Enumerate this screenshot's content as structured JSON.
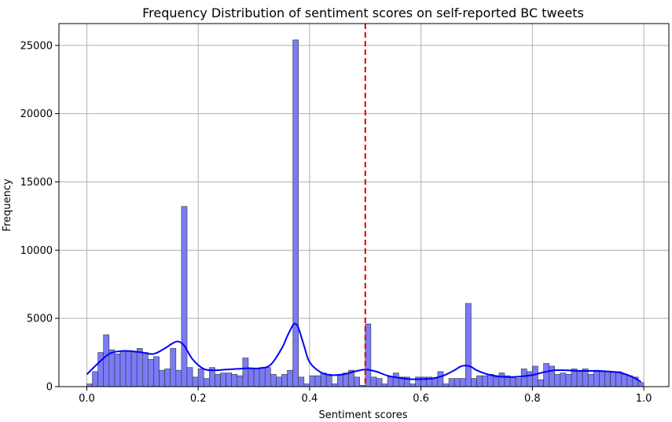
{
  "chart_data": {
    "type": "bar",
    "title": "Frequency Distribution of sentiment scores on self-reported BC tweets",
    "xlabel": "Sentiment scores",
    "ylabel": "Frequency",
    "xlim": [
      -0.05,
      1.045
    ],
    "ylim": [
      0,
      26600
    ],
    "grid": true,
    "bar_color": "#7b7bf7",
    "bar_edge_color": "#333333",
    "kde_color": "#0000ff",
    "threshold_line": {
      "x": 0.5,
      "color": "#e00000",
      "style": "dashed"
    },
    "xticks": [
      {
        "value": 0.0,
        "label": "0.0"
      },
      {
        "value": 0.2,
        "label": "0.2"
      },
      {
        "value": 0.4,
        "label": "0.4"
      },
      {
        "value": 0.6,
        "label": "0.6"
      },
      {
        "value": 0.8,
        "label": "0.8"
      },
      {
        "value": 1.0,
        "label": "1.0"
      }
    ],
    "yticks": [
      {
        "value": 0,
        "label": "0"
      },
      {
        "value": 5000,
        "label": "5000"
      },
      {
        "value": 10000,
        "label": "10000"
      },
      {
        "value": 15000,
        "label": "15000"
      },
      {
        "value": 20000,
        "label": "20000"
      },
      {
        "value": 25000,
        "label": "25000"
      }
    ],
    "bin_width": 0.01,
    "bins_start": [
      0.0,
      0.01,
      0.02,
      0.03,
      0.04,
      0.05,
      0.06,
      0.07,
      0.08,
      0.09,
      0.1,
      0.11,
      0.12,
      0.13,
      0.14,
      0.15,
      0.16,
      0.17,
      0.18,
      0.19,
      0.2,
      0.21,
      0.22,
      0.23,
      0.24,
      0.25,
      0.26,
      0.27,
      0.28,
      0.29,
      0.3,
      0.31,
      0.32,
      0.33,
      0.34,
      0.35,
      0.36,
      0.37,
      0.38,
      0.39,
      0.4,
      0.41,
      0.42,
      0.43,
      0.44,
      0.45,
      0.46,
      0.47,
      0.48,
      0.49,
      0.5,
      0.51,
      0.52,
      0.53,
      0.54,
      0.55,
      0.56,
      0.57,
      0.58,
      0.59,
      0.6,
      0.61,
      0.62,
      0.63,
      0.64,
      0.65,
      0.66,
      0.67,
      0.68,
      0.69,
      0.7,
      0.71,
      0.72,
      0.73,
      0.74,
      0.75,
      0.76,
      0.77,
      0.78,
      0.79,
      0.8,
      0.81,
      0.82,
      0.83,
      0.84,
      0.85,
      0.86,
      0.87,
      0.88,
      0.89,
      0.9,
      0.91,
      0.92,
      0.93,
      0.94,
      0.95,
      0.96,
      0.97,
      0.98,
      0.99
    ],
    "counts": [
      200,
      1100,
      2500,
      3800,
      2700,
      2400,
      2600,
      2600,
      2500,
      2800,
      2500,
      2000,
      2200,
      1200,
      1300,
      2800,
      1200,
      13200,
      1400,
      700,
      1300,
      600,
      1400,
      900,
      1000,
      1000,
      900,
      800,
      2100,
      1300,
      1300,
      1400,
      1400,
      900,
      700,
      900,
      1200,
      25400,
      700,
      200,
      800,
      800,
      1000,
      800,
      200,
      900,
      1000,
      1200,
      700,
      100,
      4600,
      700,
      600,
      200,
      700,
      1000,
      700,
      700,
      200,
      700,
      700,
      700,
      600,
      1100,
      200,
      600,
      600,
      600,
      6100,
      600,
      800,
      800,
      900,
      700,
      1000,
      800,
      700,
      600,
      1300,
      1100,
      1500,
      500,
      1700,
      1500,
      900,
      1000,
      900,
      1300,
      1200,
      1300,
      900,
      1200,
      1100,
      1100,
      1100,
      1100,
      900,
      800,
      700,
      300
    ],
    "kde": {
      "x": [
        0.0,
        0.02,
        0.04,
        0.06,
        0.08,
        0.1,
        0.12,
        0.14,
        0.155,
        0.165,
        0.175,
        0.19,
        0.21,
        0.23,
        0.25,
        0.27,
        0.29,
        0.31,
        0.33,
        0.35,
        0.36,
        0.37,
        0.375,
        0.38,
        0.39,
        0.4,
        0.42,
        0.44,
        0.46,
        0.48,
        0.5,
        0.52,
        0.54,
        0.56,
        0.58,
        0.6,
        0.62,
        0.64,
        0.66,
        0.67,
        0.68,
        0.69,
        0.7,
        0.72,
        0.74,
        0.76,
        0.78,
        0.8,
        0.82,
        0.84,
        0.86,
        0.88,
        0.9,
        0.92,
        0.94,
        0.96,
        0.98,
        0.995
      ],
      "y": [
        900,
        1700,
        2400,
        2600,
        2600,
        2500,
        2400,
        2800,
        3200,
        3300,
        3000,
        2000,
        1300,
        1200,
        1250,
        1300,
        1350,
        1350,
        1600,
        2800,
        3700,
        4500,
        4600,
        4300,
        3000,
        1800,
        1050,
        850,
        900,
        1100,
        1250,
        1100,
        800,
        650,
        550,
        550,
        600,
        800,
        1200,
        1450,
        1550,
        1450,
        1200,
        900,
        750,
        700,
        750,
        850,
        1050,
        1200,
        1200,
        1150,
        1150,
        1150,
        1100,
        1000,
        700,
        350
      ]
    }
  }
}
